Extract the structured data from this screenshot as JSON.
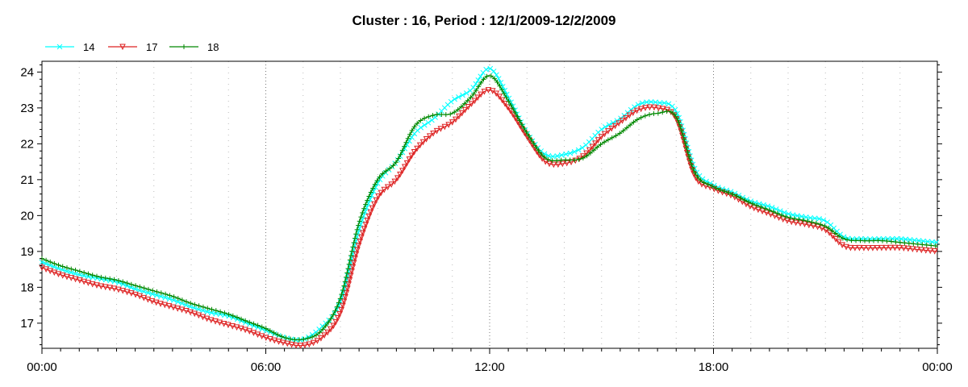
{
  "chart_data": {
    "type": "line",
    "title": "Cluster : 16, Period : 12/1/2009-12/2/2009",
    "xlabel": "",
    "ylabel": "",
    "x_unit": "hours",
    "xlim": [
      0,
      24
    ],
    "ylim": [
      16.3,
      24.3
    ],
    "x_ticks": [
      0,
      6,
      12,
      18,
      24
    ],
    "x_tick_labels": [
      "00:00",
      "06:00",
      "12:00",
      "18:00",
      "00:00"
    ],
    "y_ticks": [
      17,
      18,
      19,
      20,
      21,
      22,
      23,
      24
    ],
    "y_tick_labels": [
      "17",
      "18",
      "19",
      "20",
      "21",
      "22",
      "23",
      "24"
    ],
    "grid": true,
    "legend": "top-left",
    "x": [
      0,
      0.5,
      1,
      1.5,
      2,
      2.5,
      3,
      3.5,
      4,
      4.5,
      5,
      5.5,
      6,
      6.5,
      7,
      7.5,
      8,
      8.5,
      9,
      9.5,
      10,
      10.5,
      11,
      11.5,
      12,
      12.5,
      13,
      13.5,
      14,
      14.5,
      15,
      15.5,
      16,
      16.5,
      17,
      17.5,
      18,
      18.5,
      19,
      19.5,
      20,
      20.5,
      21,
      21.5,
      22,
      22.5,
      23,
      23.5,
      24
    ],
    "series": [
      {
        "name": "14",
        "color": "#00ffff",
        "marker": "x",
        "values": [
          18.7,
          18.5,
          18.35,
          18.25,
          18.15,
          17.95,
          17.8,
          17.65,
          17.45,
          17.3,
          17.2,
          17.0,
          16.8,
          16.6,
          16.55,
          16.9,
          17.6,
          19.6,
          20.9,
          21.5,
          22.3,
          22.7,
          23.2,
          23.5,
          24.1,
          23.3,
          22.3,
          21.7,
          21.7,
          21.9,
          22.4,
          22.7,
          23.1,
          23.15,
          22.9,
          21.3,
          20.85,
          20.65,
          20.4,
          20.25,
          20.05,
          19.95,
          19.85,
          19.4,
          19.35,
          19.35,
          19.35,
          19.3,
          19.25
        ]
      },
      {
        "name": "17",
        "color": "#dd2222",
        "marker": "triangle-down",
        "values": [
          18.55,
          18.35,
          18.2,
          18.05,
          17.95,
          17.8,
          17.6,
          17.45,
          17.3,
          17.1,
          16.95,
          16.8,
          16.6,
          16.45,
          16.38,
          16.6,
          17.3,
          19.2,
          20.5,
          21.0,
          21.8,
          22.3,
          22.6,
          23.1,
          23.5,
          23.0,
          22.2,
          21.5,
          21.45,
          21.65,
          22.2,
          22.6,
          22.95,
          23.0,
          22.7,
          21.1,
          20.75,
          20.55,
          20.25,
          20.05,
          19.85,
          19.75,
          19.6,
          19.15,
          19.1,
          19.1,
          19.1,
          19.05,
          19.0
        ]
      },
      {
        "name": "18",
        "color": "#008800",
        "marker": "plus",
        "values": [
          18.8,
          18.6,
          18.45,
          18.3,
          18.2,
          18.05,
          17.9,
          17.75,
          17.55,
          17.4,
          17.25,
          17.05,
          16.85,
          16.6,
          16.55,
          16.8,
          17.7,
          19.8,
          21.0,
          21.5,
          22.5,
          22.8,
          22.85,
          23.3,
          23.9,
          23.2,
          22.3,
          21.6,
          21.55,
          21.6,
          22.0,
          22.3,
          22.7,
          22.85,
          22.75,
          21.2,
          20.8,
          20.6,
          20.35,
          20.15,
          19.95,
          19.85,
          19.7,
          19.35,
          19.3,
          19.3,
          19.25,
          19.2,
          19.15
        ]
      }
    ]
  }
}
